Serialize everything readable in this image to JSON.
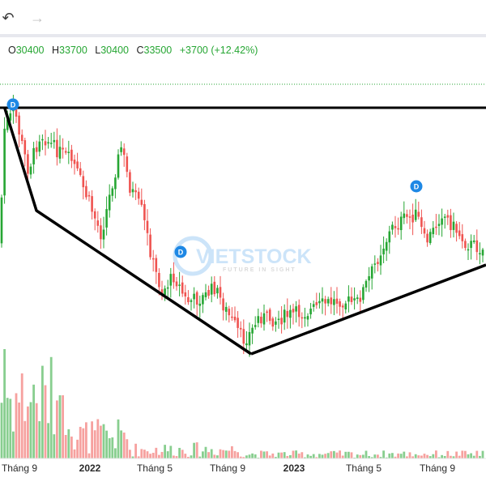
{
  "toolbar": {
    "undo_icon": "undo-arrow-icon",
    "redo_icon": "redo-arrow-icon"
  },
  "legend": {
    "open_label": "O",
    "open_value": "30400",
    "high_label": "H",
    "high_value": "33700",
    "low_label": "L",
    "low_value": "30400",
    "close_label": "C",
    "close_value": "33500",
    "change": "+3700",
    "change_pct": "(+12.42%)"
  },
  "watermark": {
    "brand": "VIETSTOCK",
    "tagline": "FUTURE IN SIGHT"
  },
  "colors": {
    "up": "#26a633",
    "down": "#ef5350",
    "line": "#000000",
    "marker": "#1e88e5"
  },
  "chart_data": {
    "type": "candlestick",
    "x_tick_labels": [
      "Tháng 9",
      "2022",
      "Tháng 5",
      "Tháng 9",
      "2023",
      "Tháng 5",
      "Tháng 9"
    ],
    "event_markers": [
      "D",
      "D",
      "D"
    ],
    "last_close": 33500,
    "series_approx": {
      "description_free": true,
      "close": [
        30400,
        36900,
        33200,
        28500,
        23600,
        19000,
        15700,
        16800,
        13600,
        18500,
        20900,
        24600,
        27600,
        25700,
        27400,
        31300,
        33500
      ]
    },
    "trend_lines": 3,
    "grid": false,
    "legend_position": "top-left"
  }
}
